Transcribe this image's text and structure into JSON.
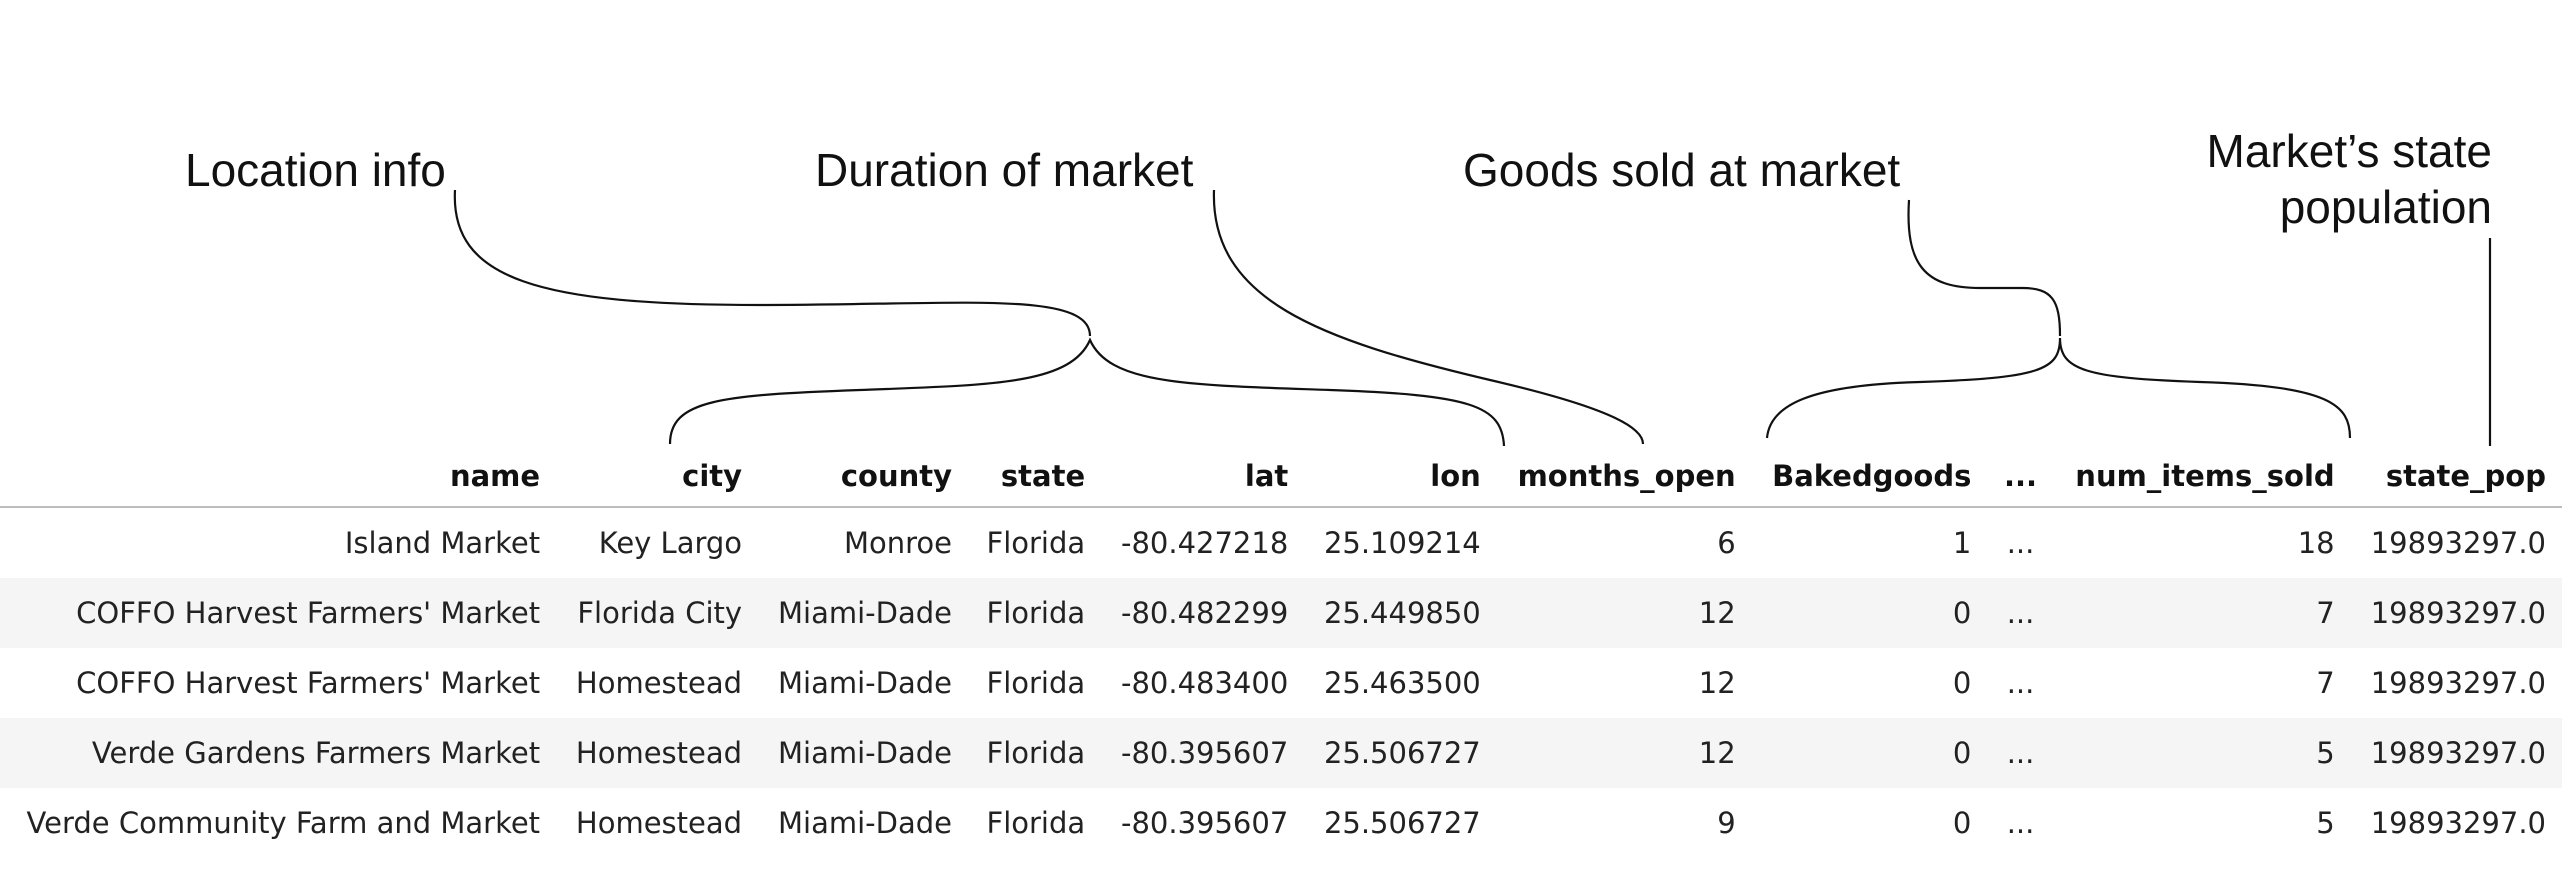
{
  "annotations": {
    "location": "Location info",
    "duration": "Duration of market",
    "goods": "Goods sold at market",
    "population": "Market’s state\npopulation"
  },
  "table": {
    "columns": [
      "name",
      "city",
      "county",
      "state",
      "lat",
      "lon",
      "months_open",
      "Bakedgoods",
      "...",
      "num_items_sold",
      "state_pop"
    ],
    "rows": [
      [
        "Island Market",
        "Key Largo",
        "Monroe",
        "Florida",
        "-80.427218",
        "25.109214",
        "6",
        "1",
        "...",
        "18",
        "19893297.0"
      ],
      [
        "COFFO Harvest Farmers' Market",
        "Florida City",
        "Miami-Dade",
        "Florida",
        "-80.482299",
        "25.449850",
        "12",
        "0",
        "...",
        "7",
        "19893297.0"
      ],
      [
        "COFFO Harvest Farmers' Market",
        "Homestead",
        "Miami-Dade",
        "Florida",
        "-80.483400",
        "25.463500",
        "12",
        "0",
        "...",
        "7",
        "19893297.0"
      ],
      [
        "Verde Gardens Farmers Market",
        "Homestead",
        "Miami-Dade",
        "Florida",
        "-80.395607",
        "25.506727",
        "12",
        "0",
        "...",
        "5",
        "19893297.0"
      ],
      [
        "Verde Community Farm and Market",
        "Homestead",
        "Miami-Dade",
        "Florida",
        "-80.395607",
        "25.506727",
        "9",
        "0",
        "...",
        "5",
        "19893297.0"
      ]
    ]
  }
}
